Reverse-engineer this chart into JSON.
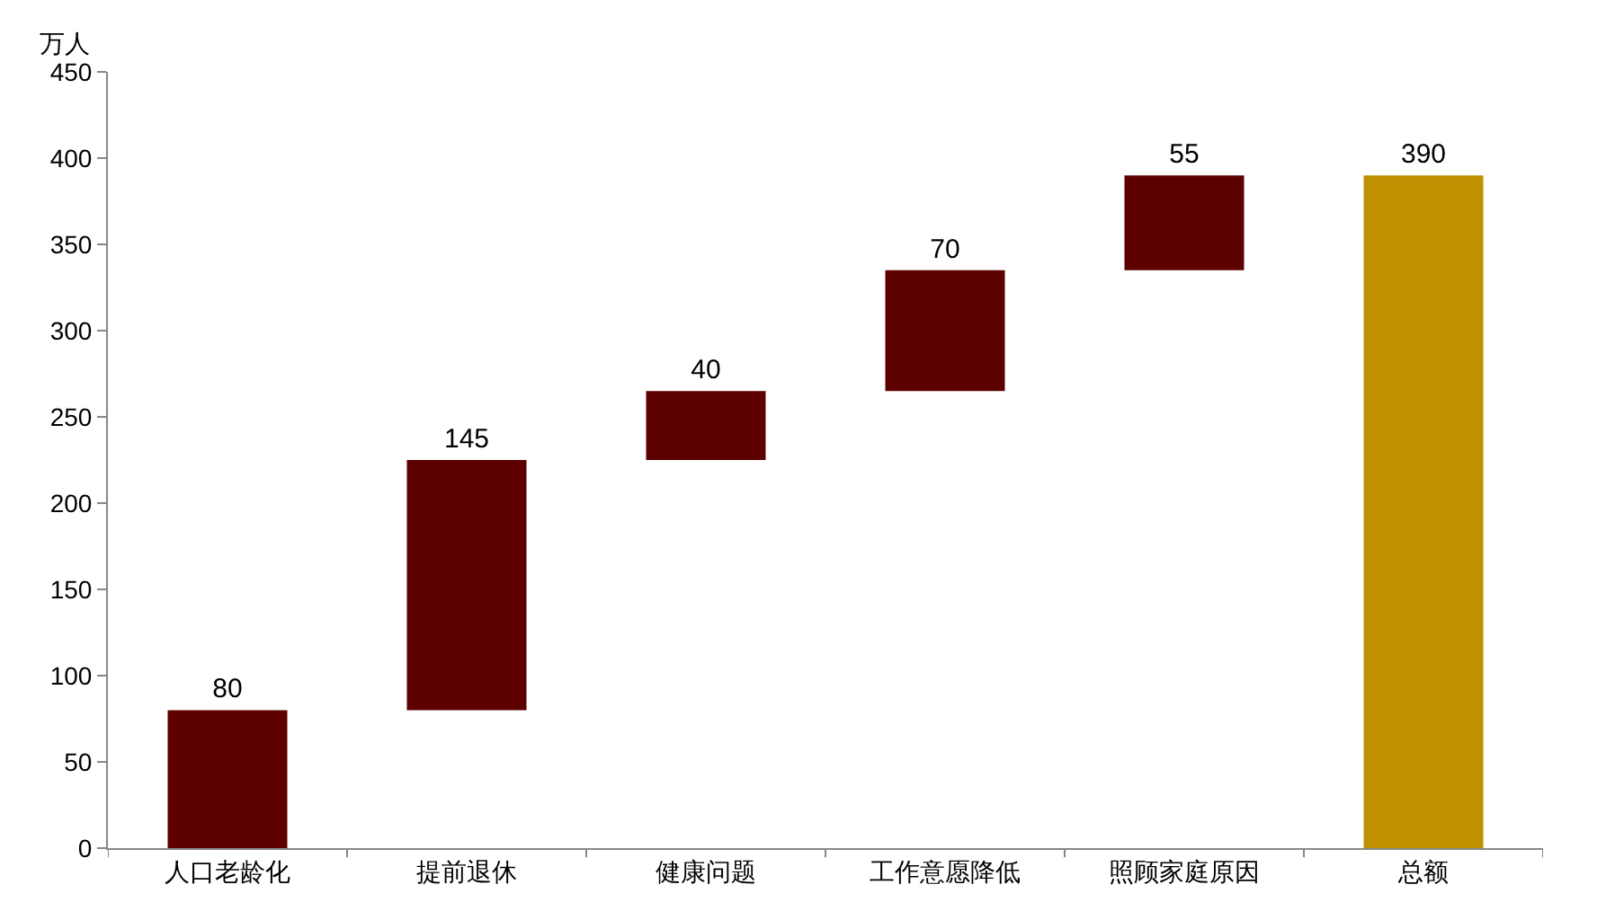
{
  "chart_data": {
    "type": "bar",
    "ylabel": "万人",
    "categories": [
      "人口老龄化",
      "提前退休",
      "健康问题",
      "工作意愿降低",
      "照顾家庭原因",
      "总额"
    ],
    "values": [
      80,
      145,
      40,
      70,
      55,
      390
    ],
    "base": [
      0,
      80,
      225,
      265,
      335,
      0
    ],
    "colors": [
      "#5c0000",
      "#5c0000",
      "#5c0000",
      "#5c0000",
      "#5c0000",
      "#c09000"
    ],
    "ylim": [
      0,
      450
    ],
    "yticks": [
      0,
      50,
      100,
      150,
      200,
      250,
      300,
      350,
      400,
      450
    ],
    "data_labels": true
  }
}
